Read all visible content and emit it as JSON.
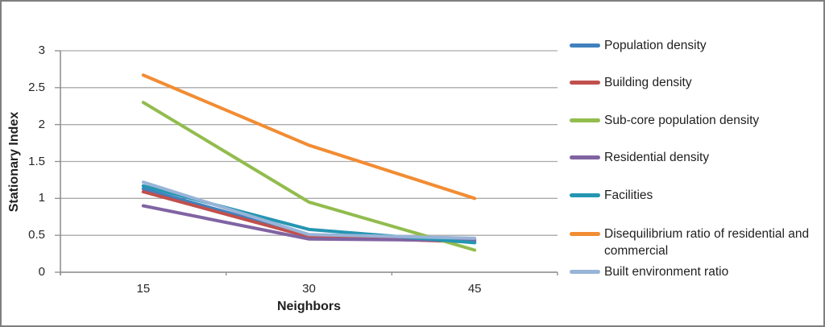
{
  "chart_data": {
    "type": "line",
    "x": [
      15,
      30,
      45
    ],
    "xlabel": "Neighbors",
    "ylabel": "Stationary Index",
    "ylim": [
      0,
      3
    ],
    "ytick_step": 0.5,
    "ytick_labels": [
      "0",
      "0.5",
      "1",
      "1.5",
      "2",
      "2.5",
      "3"
    ],
    "grid": true,
    "legend_position": "right",
    "series": [
      {
        "name": "Population density",
        "color": "#4081BD",
        "values": [
          1.13,
          0.5,
          0.44
        ]
      },
      {
        "name": "Building density",
        "color": "#C0504D",
        "values": [
          1.09,
          0.48,
          0.41
        ]
      },
      {
        "name": "Sub-core population density",
        "color": "#92BC4E",
        "values": [
          2.3,
          0.95,
          0.3
        ]
      },
      {
        "name": "Residential density",
        "color": "#8064A2",
        "values": [
          0.9,
          0.45,
          0.43
        ]
      },
      {
        "name": "Facilities",
        "color": "#2596B2",
        "values": [
          1.17,
          0.58,
          0.4
        ]
      },
      {
        "name": "Disequilibrium ratio of residential and commercial",
        "color": "#F28C33",
        "values": [
          2.67,
          1.72,
          1.0
        ]
      },
      {
        "name": "Built environment ratio",
        "color": "#98B4D8",
        "values": [
          1.22,
          0.51,
          0.46
        ]
      }
    ],
    "axis_color": "#8c8c8c",
    "gridline_color": "#aaaaaa",
    "border_color": "#7f7f7f",
    "background_color": "#ffffff"
  }
}
